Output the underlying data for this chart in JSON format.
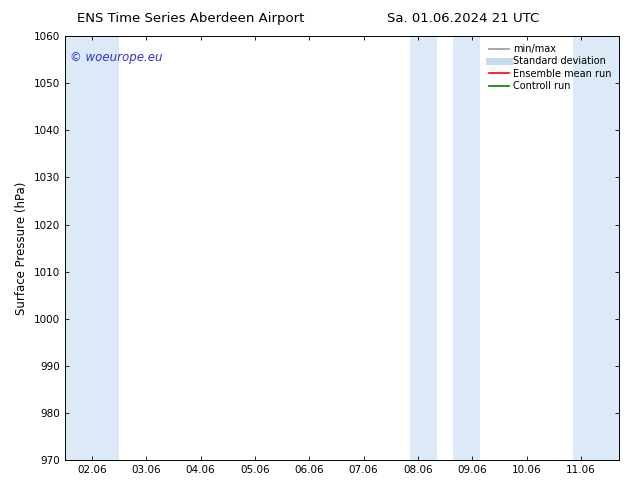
{
  "title_left": "ENS Time Series Aberdeen Airport",
  "title_right": "Sa. 01.06.2024 21 UTC",
  "ylabel": "Surface Pressure (hPa)",
  "ylim": [
    970,
    1060
  ],
  "yticks": [
    970,
    980,
    990,
    1000,
    1010,
    1020,
    1030,
    1040,
    1050,
    1060
  ],
  "xtick_labels": [
    "02.06",
    "03.06",
    "04.06",
    "05.06",
    "06.06",
    "07.06",
    "08.06",
    "09.06",
    "10.06",
    "11.06"
  ],
  "xlim": [
    -0.5,
    9.7
  ],
  "shaded_bands": [
    {
      "x_start": -0.5,
      "x_end": 0.5
    },
    {
      "x_start": 5.85,
      "x_end": 6.35
    },
    {
      "x_start": 6.65,
      "x_end": 7.15
    },
    {
      "x_start": 8.85,
      "x_end": 9.7
    }
  ],
  "shade_color": "#dce9f7",
  "background_color": "#ffffff",
  "watermark_text": "© woeurope.eu",
  "watermark_color": "#3333cc",
  "legend_items": [
    {
      "label": "min/max",
      "color": "#999999",
      "lw": 1.2
    },
    {
      "label": "Standard deviation",
      "color": "#c8daf0",
      "lw": 5
    },
    {
      "label": "Ensemble mean run",
      "color": "red",
      "lw": 1.2
    },
    {
      "label": "Controll run",
      "color": "green",
      "lw": 1.2
    }
  ],
  "tick_fontsize": 7.5,
  "ylabel_fontsize": 8.5,
  "title_fontsize": 9.5
}
